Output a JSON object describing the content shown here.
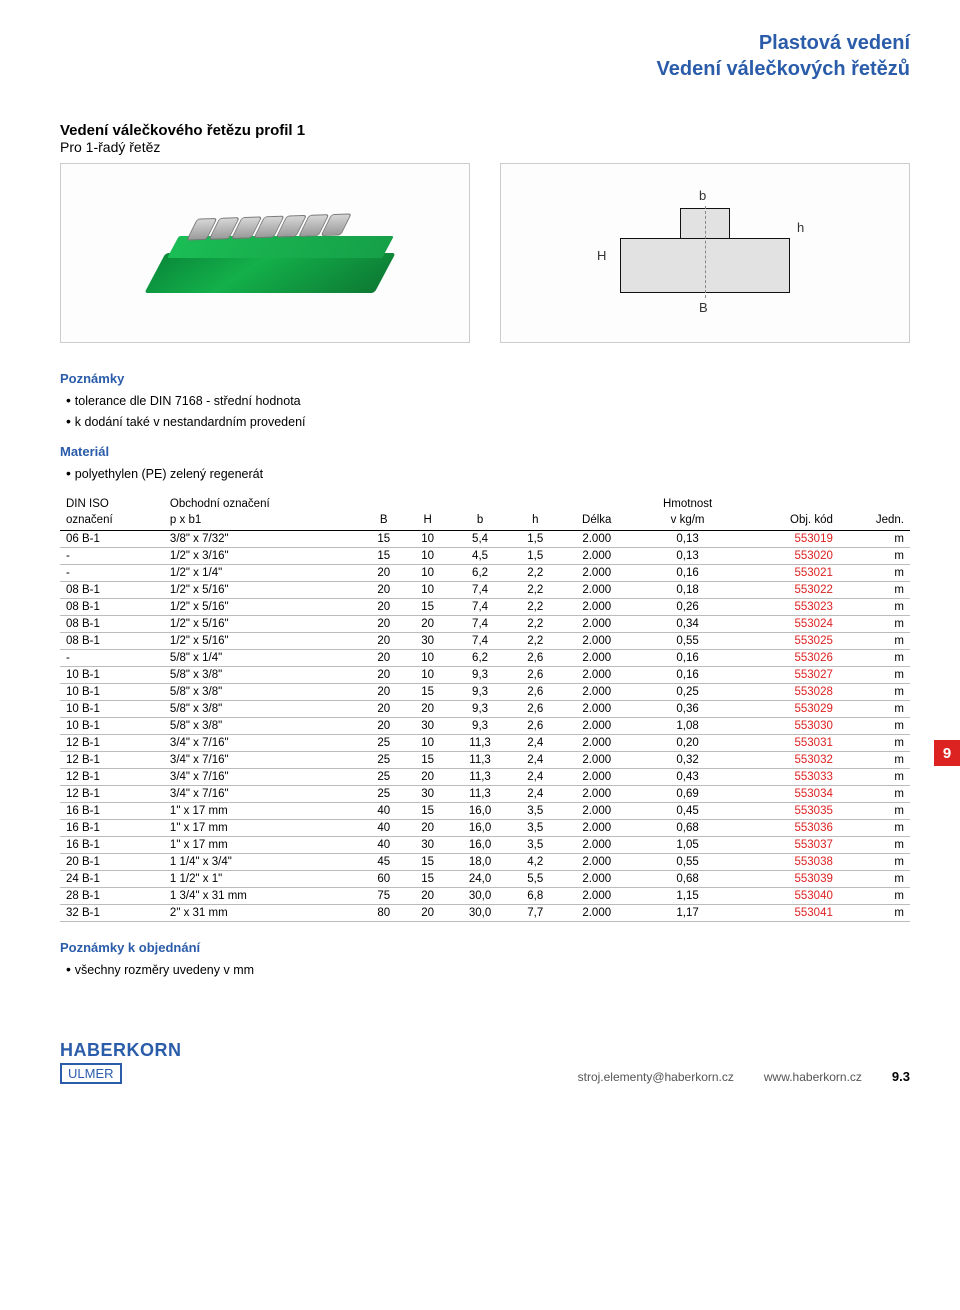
{
  "header": {
    "line1": "Plastová vedení",
    "line2": "Vedení válečkových řetězů"
  },
  "subheading": {
    "bold": "Vedení válečkového řetězu profil 1",
    "light": "Pro 1-řadý řetěz"
  },
  "diagram_labels": {
    "b": "b",
    "H": "H",
    "h": "h",
    "B": "B"
  },
  "notes": {
    "heading1": "Poznámky",
    "items1": [
      "tolerance dle DIN 7168 - střední hodnota",
      "k dodání také v nestandardním provedení"
    ],
    "heading2": "Materiál",
    "items2": [
      "polyethylen (PE) zelený regenerát"
    ]
  },
  "table": {
    "headers_top": [
      "DIN ISO",
      "Obchodní označení",
      "",
      "",
      "",
      "",
      "",
      "Hmotnost",
      "",
      ""
    ],
    "headers_bottom": [
      "označení",
      "p x b1",
      "B",
      "H",
      "b",
      "h",
      "Délka",
      "v kg/m",
      "Obj. kód",
      "Jedn."
    ],
    "rows": [
      [
        "06 B-1",
        "3/8\" x 7/32\"",
        "15",
        "10",
        "5,4",
        "1,5",
        "2.000",
        "0,13",
        "553019",
        "m"
      ],
      [
        "-",
        "1/2\" x 3/16\"",
        "15",
        "10",
        "4,5",
        "1,5",
        "2.000",
        "0,13",
        "553020",
        "m"
      ],
      [
        "-",
        "1/2\" x 1/4\"",
        "20",
        "10",
        "6,2",
        "2,2",
        "2.000",
        "0,16",
        "553021",
        "m"
      ],
      [
        "08 B-1",
        "1/2\" x 5/16\"",
        "20",
        "10",
        "7,4",
        "2,2",
        "2.000",
        "0,18",
        "553022",
        "m"
      ],
      [
        "08 B-1",
        "1/2\" x 5/16\"",
        "20",
        "15",
        "7,4",
        "2,2",
        "2.000",
        "0,26",
        "553023",
        "m"
      ],
      [
        "08 B-1",
        "1/2\" x 5/16\"",
        "20",
        "20",
        "7,4",
        "2,2",
        "2.000",
        "0,34",
        "553024",
        "m"
      ],
      [
        "08 B-1",
        "1/2\" x 5/16\"",
        "20",
        "30",
        "7,4",
        "2,2",
        "2.000",
        "0,55",
        "553025",
        "m"
      ],
      [
        "-",
        "5/8\" x 1/4\"",
        "20",
        "10",
        "6,2",
        "2,6",
        "2.000",
        "0,16",
        "553026",
        "m"
      ],
      [
        "10 B-1",
        "5/8\" x 3/8\"",
        "20",
        "10",
        "9,3",
        "2,6",
        "2.000",
        "0,16",
        "553027",
        "m"
      ],
      [
        "10 B-1",
        "5/8\" x 3/8\"",
        "20",
        "15",
        "9,3",
        "2,6",
        "2.000",
        "0,25",
        "553028",
        "m"
      ],
      [
        "10 B-1",
        "5/8\" x 3/8\"",
        "20",
        "20",
        "9,3",
        "2,6",
        "2.000",
        "0,36",
        "553029",
        "m"
      ],
      [
        "10 B-1",
        "5/8\" x 3/8\"",
        "20",
        "30",
        "9,3",
        "2,6",
        "2.000",
        "1,08",
        "553030",
        "m"
      ],
      [
        "12 B-1",
        "3/4\" x 7/16\"",
        "25",
        "10",
        "11,3",
        "2,4",
        "2.000",
        "0,20",
        "553031",
        "m"
      ],
      [
        "12 B-1",
        "3/4\" x 7/16\"",
        "25",
        "15",
        "11,3",
        "2,4",
        "2.000",
        "0,32",
        "553032",
        "m"
      ],
      [
        "12 B-1",
        "3/4\" x 7/16\"",
        "25",
        "20",
        "11,3",
        "2,4",
        "2.000",
        "0,43",
        "553033",
        "m"
      ],
      [
        "12 B-1",
        "3/4\" x 7/16\"",
        "25",
        "30",
        "11,3",
        "2,4",
        "2.000",
        "0,69",
        "553034",
        "m"
      ],
      [
        "16 B-1",
        "1\" x 17 mm",
        "40",
        "15",
        "16,0",
        "3,5",
        "2.000",
        "0,45",
        "553035",
        "m"
      ],
      [
        "16 B-1",
        "1\" x 17 mm",
        "40",
        "20",
        "16,0",
        "3,5",
        "2.000",
        "0,68",
        "553036",
        "m"
      ],
      [
        "16 B-1",
        "1\" x 17 mm",
        "40",
        "30",
        "16,0",
        "3,5",
        "2.000",
        "1,05",
        "553037",
        "m"
      ],
      [
        "20 B-1",
        "1 1/4\" x 3/4\"",
        "45",
        "15",
        "18,0",
        "4,2",
        "2.000",
        "0,55",
        "553038",
        "m"
      ],
      [
        "24 B-1",
        "1 1/2\" x 1\"",
        "60",
        "15",
        "24,0",
        "5,5",
        "2.000",
        "0,68",
        "553039",
        "m"
      ],
      [
        "28 B-1",
        "1 3/4\" x 31 mm",
        "75",
        "20",
        "30,0",
        "6,8",
        "2.000",
        "1,15",
        "553040",
        "m"
      ],
      [
        "32 B-1",
        "2\" x 31 mm",
        "80",
        "20",
        "30,0",
        "7,7",
        "2.000",
        "1,17",
        "553041",
        "m"
      ]
    ]
  },
  "order_notes": {
    "heading": "Poznámky k objednání",
    "items": [
      "všechny rozměry uvedeny v mm"
    ]
  },
  "side_tab": "9",
  "footer": {
    "logo_main": "HABERKORN",
    "logo_sub": "ULMER",
    "email": "stroj.elementy@haberkorn.cz",
    "url": "www.haberkorn.cz",
    "page": "9.3"
  }
}
